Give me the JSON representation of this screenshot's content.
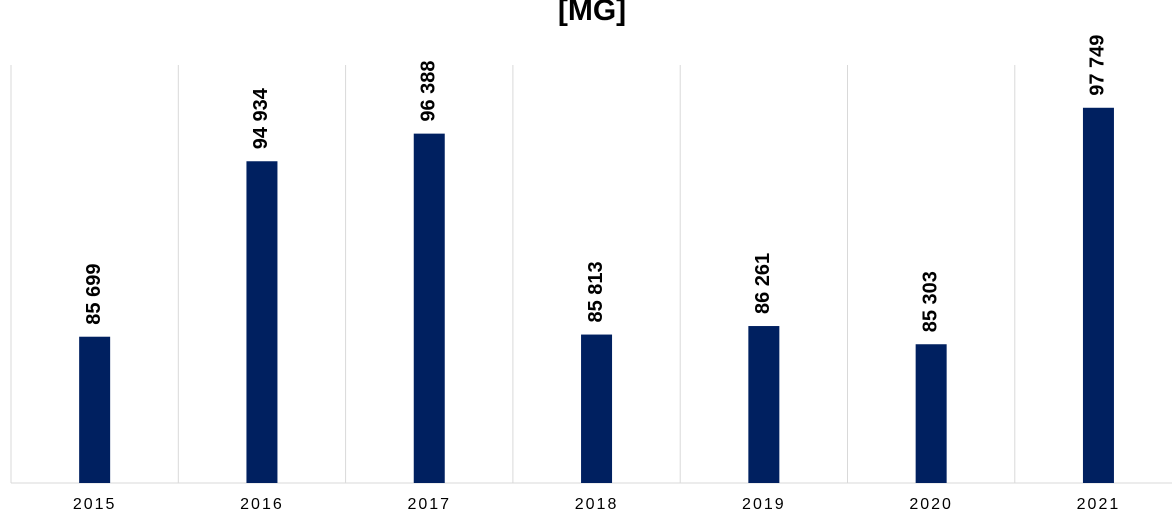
{
  "chart_data": {
    "type": "bar",
    "title": "[MG]",
    "categories": [
      "2015",
      "2016",
      "2017",
      "2018",
      "2019",
      "2020",
      "2021"
    ],
    "values": [
      85699,
      94934,
      96388,
      85813,
      86261,
      85303,
      97749
    ],
    "value_labels": [
      "85 699",
      "94 934",
      "96 388",
      "85 813",
      "86 261",
      "85 303",
      "97 749"
    ],
    "color": "#002060",
    "ylim": [
      78000,
      100000
    ]
  }
}
